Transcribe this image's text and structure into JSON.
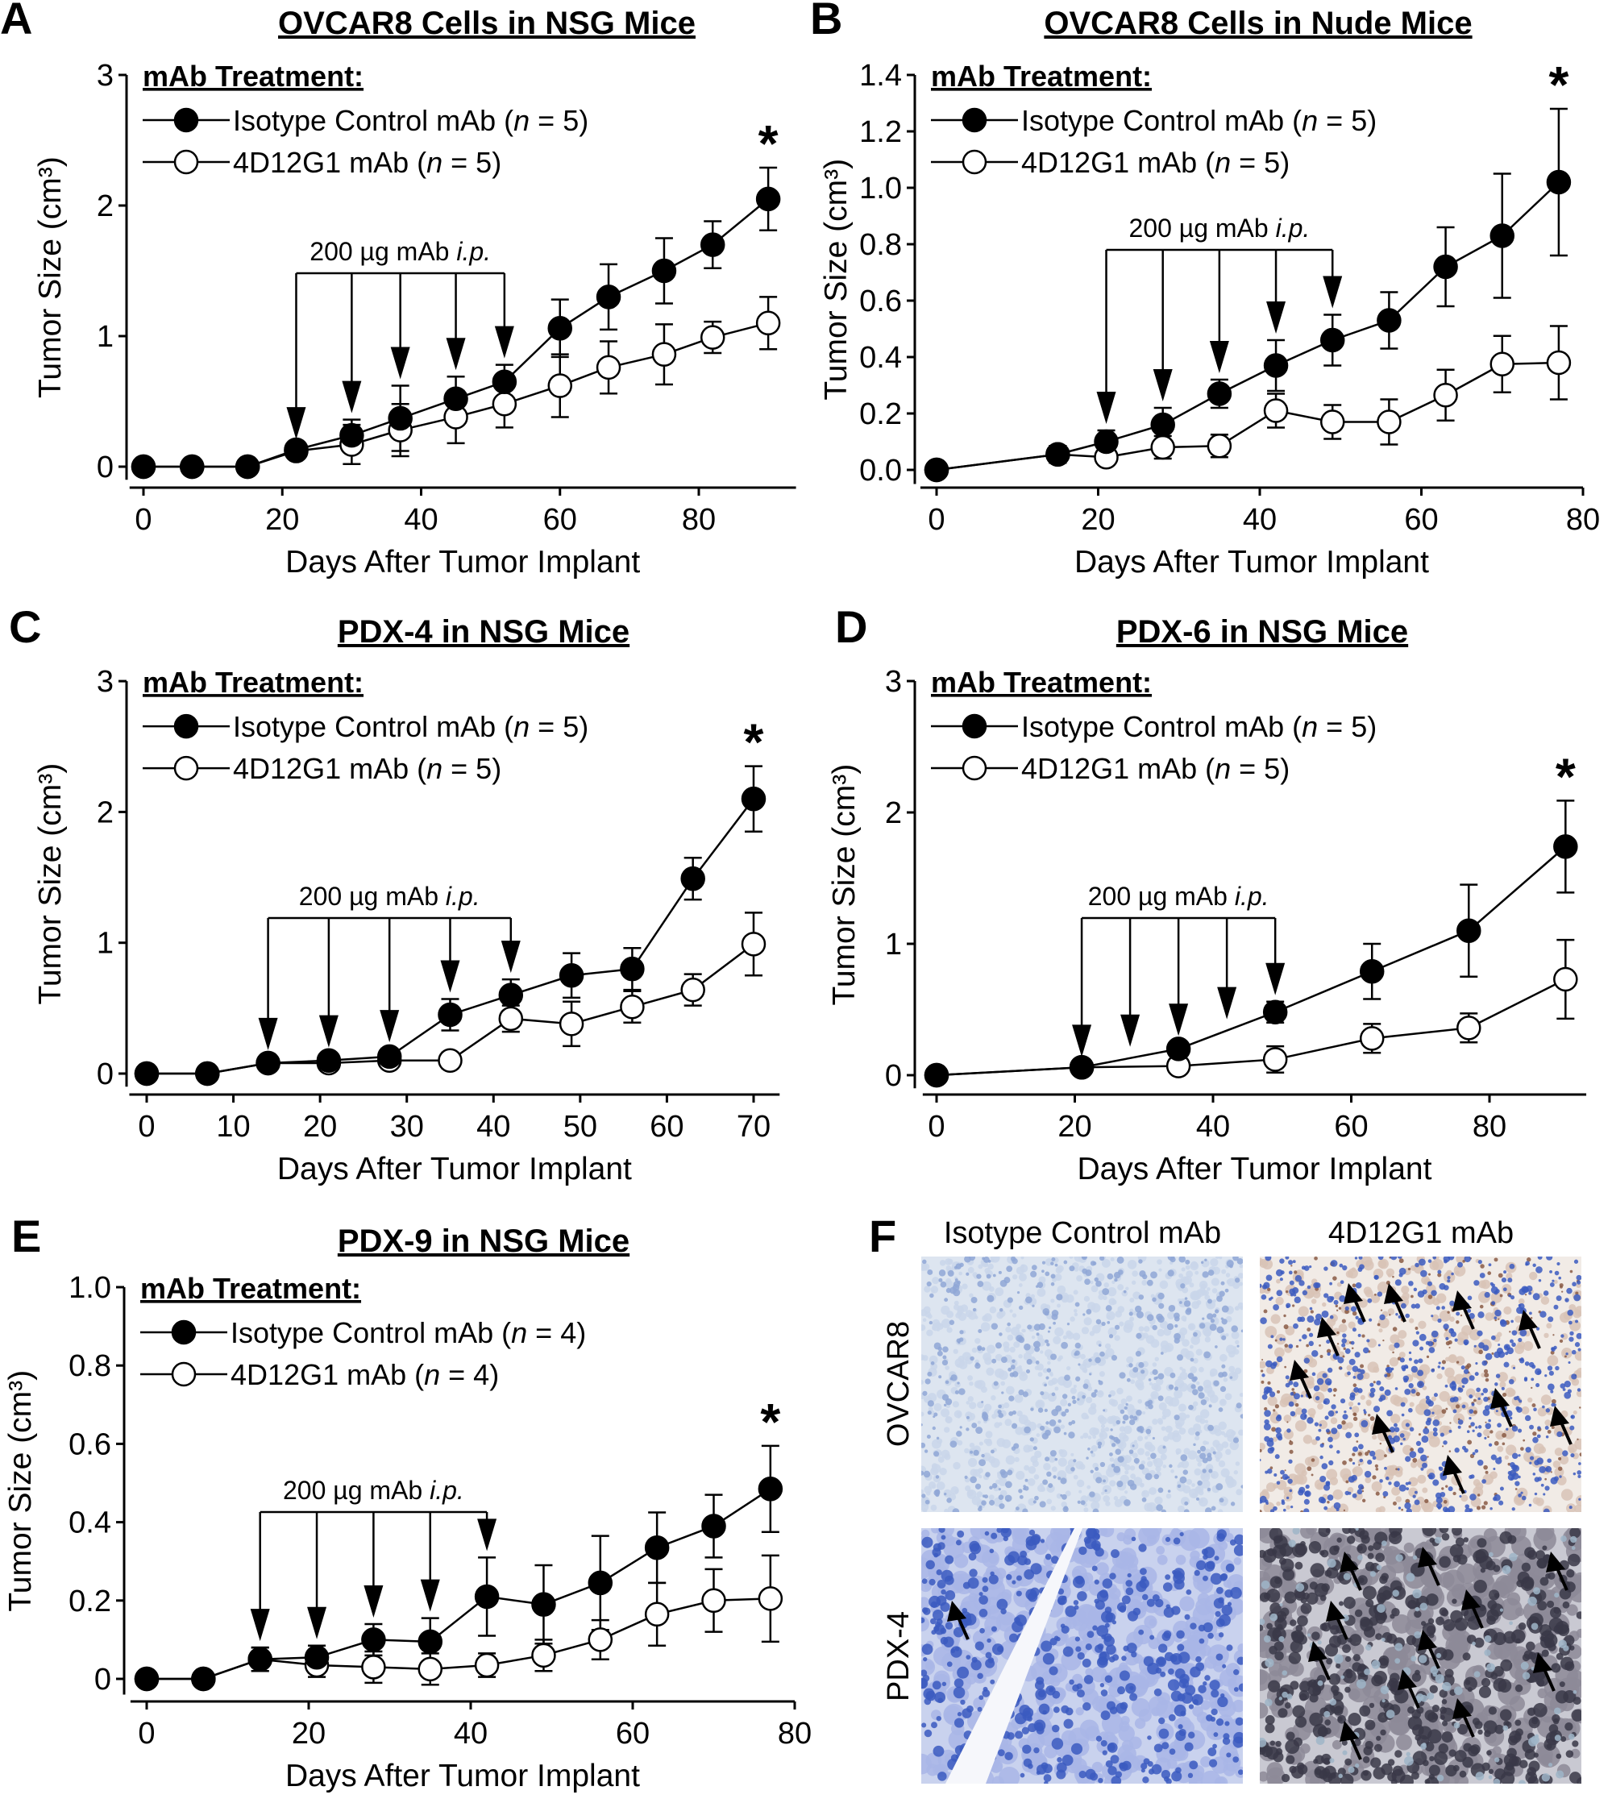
{
  "chart_data": [
    {
      "type": "line",
      "panel_label": "A",
      "title": "OVCAR8 Cells in NSG Mice",
      "legend_title": "mAb Treatment:",
      "xlabel": "Days After Tumor Implant",
      "ylabel": "Tumor Size (cm³)",
      "xlim": [
        -2,
        94
      ],
      "ylim": [
        -0.1,
        3
      ],
      "xticks": [
        0,
        20,
        40,
        60,
        80
      ],
      "yticks": [
        "0",
        "1",
        "2",
        "3"
      ],
      "ytick_values": [
        0,
        1,
        2,
        3
      ],
      "x": [
        0,
        7,
        15,
        22,
        30,
        37,
        45,
        52,
        60,
        67,
        75,
        82,
        90
      ],
      "series": [
        {
          "name": "Isotype Control mAb (n = 5)",
          "marker": "filled-circle",
          "values": [
            0,
            0,
            0,
            0.13,
            0.24,
            0.37,
            0.52,
            0.65,
            1.06,
            1.3,
            1.5,
            1.7,
            2.05
          ],
          "errors": [
            0,
            0,
            0,
            0.03,
            0.12,
            0.25,
            0.17,
            0.13,
            0.22,
            0.25,
            0.25,
            0.18,
            0.24
          ]
        },
        {
          "name": "4D12G1 mAb (n = 5)",
          "marker": "open-circle",
          "values": [
            0,
            0,
            0,
            0.12,
            0.17,
            0.28,
            0.38,
            0.48,
            0.62,
            0.76,
            0.86,
            0.99,
            1.1
          ],
          "errors": [
            0,
            0,
            0,
            0.03,
            0.15,
            0.2,
            0.2,
            0.18,
            0.24,
            0.2,
            0.23,
            0.12,
            0.2
          ]
        }
      ],
      "treatment": {
        "label": "200 µg mAb i.p.",
        "days": [
          22,
          30,
          37,
          45,
          52
        ]
      },
      "annotation": {
        "text": "*",
        "x": 90
      }
    },
    {
      "type": "line",
      "panel_label": "B",
      "title": "OVCAR8 Cells in Nude Mice",
      "legend_title": "mAb Treatment:",
      "xlabel": "Days After Tumor Implant",
      "ylabel": "Tumor Size (cm³)",
      "xlim": [
        -2,
        80
      ],
      "ylim": [
        -0.05,
        1.4
      ],
      "xticks": [
        0,
        20,
        40,
        60,
        80
      ],
      "yticks": [
        "0.0",
        "0.2",
        "0.4",
        "0.6",
        "0.8",
        "1.0",
        "1.2",
        "1.4"
      ],
      "ytick_values": [
        0,
        0.2,
        0.4,
        0.6,
        0.8,
        1.0,
        1.2,
        1.4
      ],
      "x": [
        0,
        15,
        21,
        28,
        35,
        42,
        49,
        56,
        63,
        70,
        77
      ],
      "series": [
        {
          "name": "Isotype Control mAb (n = 5)",
          "marker": "filled-circle",
          "values": [
            0,
            0.055,
            0.1,
            0.16,
            0.27,
            0.37,
            0.46,
            0.53,
            0.72,
            0.83,
            1.02
          ],
          "errors": [
            0,
            0.03,
            0.04,
            0.06,
            0.05,
            0.09,
            0.09,
            0.1,
            0.14,
            0.22,
            0.26
          ]
        },
        {
          "name": "4D12G1 mAb (n = 5)",
          "marker": "open-circle",
          "values": [
            0,
            0.055,
            0.045,
            0.08,
            0.085,
            0.21,
            0.17,
            0.17,
            0.265,
            0.375,
            0.38
          ],
          "errors": [
            0,
            0.03,
            0.02,
            0.04,
            0.04,
            0.06,
            0.06,
            0.08,
            0.09,
            0.1,
            0.13
          ]
        }
      ],
      "treatment": {
        "label": "200 µg mAb i.p.",
        "days": [
          21,
          28,
          35,
          42,
          49
        ]
      },
      "annotation": {
        "text": "*",
        "x": 77
      }
    },
    {
      "type": "line",
      "panel_label": "C",
      "title": "PDX-4 in NSG Mice",
      "legend_title": "mAb Treatment:",
      "xlabel": "Days After Tumor Implant",
      "ylabel": "Tumor Size (cm³)",
      "xlim": [
        -2,
        73
      ],
      "ylim": [
        -0.1,
        3
      ],
      "xticks": [
        0,
        10,
        20,
        30,
        40,
        50,
        60,
        70
      ],
      "yticks": [
        "0",
        "1",
        "2",
        "3"
      ],
      "ytick_values": [
        0,
        1,
        2,
        3
      ],
      "x": [
        0,
        7,
        14,
        21,
        28,
        35,
        42,
        49,
        56,
        63,
        70
      ],
      "series": [
        {
          "name": "Isotype Control mAb (n = 5)",
          "marker": "filled-circle",
          "values": [
            0,
            0,
            0.08,
            0.1,
            0.13,
            0.45,
            0.6,
            0.75,
            0.8,
            1.49,
            2.1
          ],
          "errors": [
            0,
            0,
            0.05,
            0.05,
            0.06,
            0.12,
            0.12,
            0.17,
            0.16,
            0.16,
            0.25
          ]
        },
        {
          "name": "4D12G1 mAb (n = 5)",
          "marker": "open-circle",
          "values": [
            0,
            0,
            0.08,
            0.08,
            0.1,
            0.1,
            0.42,
            0.38,
            0.51,
            0.64,
            0.99
          ],
          "errors": [
            0,
            0,
            0.05,
            0.05,
            0.05,
            0.06,
            0.1,
            0.17,
            0.12,
            0.12,
            0.24
          ]
        }
      ],
      "treatment": {
        "label": "200 µg mAb i.p.",
        "days": [
          14,
          21,
          28,
          35,
          42
        ]
      },
      "annotation": {
        "text": "*",
        "x": 70
      }
    },
    {
      "type": "line",
      "panel_label": "D",
      "title": "PDX-6 in NSG Mice",
      "legend_title": "mAb Treatment:",
      "xlabel": "Days After Tumor Implant",
      "ylabel": "Tumor Size (cm³)",
      "xlim": [
        -2,
        94
      ],
      "ylim": [
        -0.1,
        3
      ],
      "xticks": [
        0,
        20,
        40,
        60,
        80
      ],
      "yticks": [
        "0",
        "1",
        "2",
        "3"
      ],
      "ytick_values": [
        0,
        1,
        2,
        3
      ],
      "x": [
        0,
        21,
        35,
        49,
        63,
        77,
        91
      ],
      "series": [
        {
          "name": "Isotype Control mAb (n = 5)",
          "marker": "filled-circle",
          "values": [
            0,
            0.06,
            0.2,
            0.48,
            0.79,
            1.1,
            1.74
          ],
          "errors": [
            0,
            0.03,
            0.05,
            0.08,
            0.21,
            0.35,
            0.35
          ]
        },
        {
          "name": "4D12G1 mAb (n = 5)",
          "marker": "open-circle",
          "values": [
            0,
            0.06,
            0.07,
            0.12,
            0.28,
            0.36,
            0.73
          ],
          "errors": [
            0,
            0.03,
            0.05,
            0.1,
            0.11,
            0.11,
            0.3
          ]
        }
      ],
      "treatment": {
        "label": "200 µg mAb i.p.",
        "days": [
          21,
          28,
          35,
          42,
          49
        ]
      },
      "annotation": {
        "text": "*",
        "x": 91
      }
    },
    {
      "type": "line",
      "panel_label": "E",
      "title": "PDX-9 in NSG Mice",
      "legend_title": "mAb Treatment:",
      "xlabel": "Days After Tumor Implant",
      "ylabel": "Tumor Size (cm³)",
      "xlim": [
        -2,
        80
      ],
      "ylim": [
        -0.04,
        1.0
      ],
      "xticks": [
        0,
        20,
        40,
        60,
        80
      ],
      "yticks": [
        "0",
        "0.2",
        "0.4",
        "0.6",
        "0.8",
        "1.0"
      ],
      "ytick_values": [
        0,
        0.2,
        0.4,
        0.6,
        0.8,
        1.0
      ],
      "x": [
        0,
        7,
        14,
        21,
        28,
        35,
        42,
        49,
        56,
        63,
        70,
        77
      ],
      "series": [
        {
          "name": "Isotype Control mAb (n = 4)",
          "marker": "filled-circle",
          "values": [
            0,
            0,
            0.05,
            0.055,
            0.1,
            0.095,
            0.21,
            0.19,
            0.245,
            0.335,
            0.39,
            0.485
          ],
          "errors": [
            0,
            0,
            0.03,
            0.03,
            0.04,
            0.06,
            0.1,
            0.1,
            0.12,
            0.09,
            0.08,
            0.11
          ]
        },
        {
          "name": "4D12G1 mAb (n = 4)",
          "marker": "open-circle",
          "values": [
            0,
            0,
            0.05,
            0.035,
            0.03,
            0.025,
            0.035,
            0.06,
            0.1,
            0.165,
            0.2,
            0.205
          ],
          "errors": [
            0,
            0,
            0.03,
            0.03,
            0.04,
            0.04,
            0.03,
            0.04,
            0.05,
            0.08,
            0.08,
            0.11
          ]
        }
      ],
      "treatment": {
        "label": "200 µg mAb i.p.",
        "days": [
          14,
          21,
          28,
          35,
          42
        ]
      },
      "annotation": {
        "text": "*",
        "x": 77
      }
    }
  ],
  "panel_f": {
    "panel_label": "F",
    "columns": [
      "Isotype Control mAb",
      "4D12G1 mAb"
    ],
    "rows": [
      "OVCAR8",
      "PDX-4"
    ],
    "colors": {
      "hematoxylin": "#3b5bbf",
      "light_stain": "#c9d6ea",
      "dab_brown": "#8a5a44",
      "dark_nuclei": "#3a3848"
    }
  },
  "colors": {
    "ink": "#000000",
    "open_marker_fill": "#ffffff"
  }
}
